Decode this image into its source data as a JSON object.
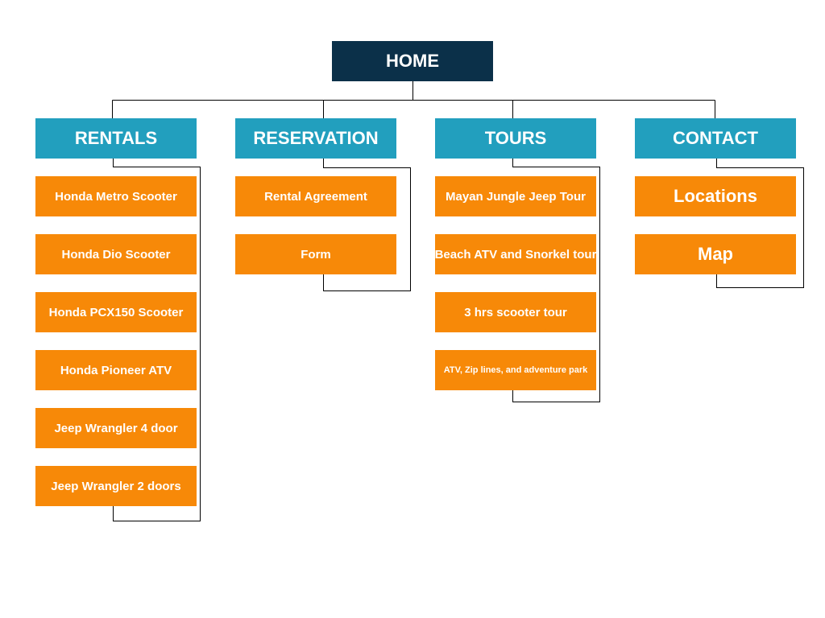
{
  "home": {
    "label": "HOME"
  },
  "sections": [
    {
      "label": "RENTALS",
      "items": [
        "Honda Metro Scooter",
        "Honda Dio Scooter",
        "Honda PCX150 Scooter",
        "Honda Pioneer ATV",
        "Jeep Wrangler 4 door",
        "Jeep Wrangler 2 doors"
      ]
    },
    {
      "label": "RESERVATION",
      "items": [
        "Rental Agreement",
        "Form"
      ]
    },
    {
      "label": "TOURS",
      "items": [
        "Mayan Jungle Jeep Tour",
        "Beach ATV and Snorkel tour",
        "3 hrs scooter tour",
        "ATV, Zip lines, and adventure park"
      ]
    },
    {
      "label": "CONTACT",
      "items": [
        "Locations",
        "Map"
      ]
    }
  ],
  "colors": {
    "home": "#0b3049",
    "section": "#229fbe",
    "leaf": "#f78908",
    "text": "#ffffff",
    "line": "#000000"
  }
}
